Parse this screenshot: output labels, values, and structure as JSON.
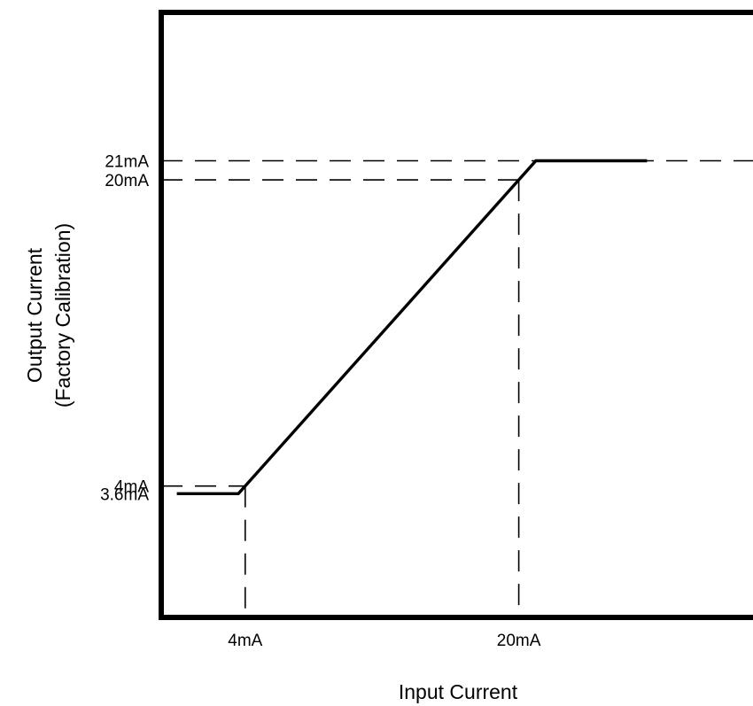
{
  "chart_data": {
    "type": "line",
    "title": "",
    "xlabel": "Input Current",
    "ylabel_lines": [
      "Output Current",
      "(Factory Calibration)"
    ],
    "x_unit": "mA",
    "y_unit": "mA",
    "x_ticks": [
      {
        "value": 4,
        "label": "4mA"
      },
      {
        "value": 20,
        "label": "20mA"
      }
    ],
    "y_ticks": [
      {
        "value": 3.6,
        "label": "3.6mA"
      },
      {
        "value": 4,
        "label": "4mA"
      },
      {
        "value": 20,
        "label": "20mA"
      },
      {
        "value": 21,
        "label": "21mA"
      }
    ],
    "series": [
      {
        "x": [
          0,
          3.6,
          21,
          27.5
        ],
        "y": [
          3.6,
          3.6,
          21,
          21
        ]
      }
    ],
    "reference_lines": [
      {
        "x": 4,
        "y": 4
      },
      {
        "x": 20,
        "y": 20
      },
      {
        "y": 21
      }
    ],
    "grid": false,
    "legend": "none"
  }
}
